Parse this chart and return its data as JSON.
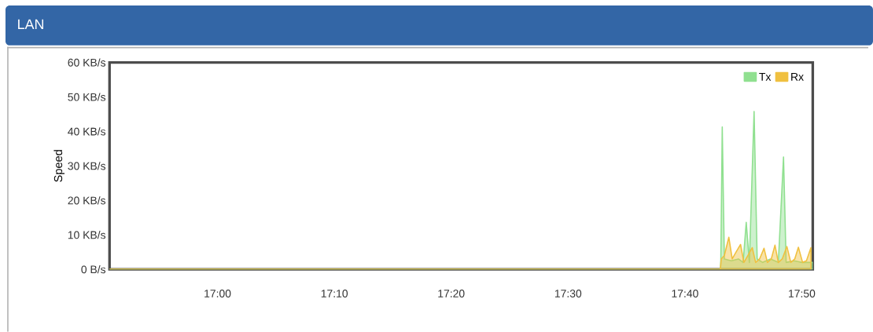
{
  "chart_data": {
    "type": "area",
    "title": "LAN",
    "ylabel": "Speed",
    "xlim": [
      16.846,
      17.849
    ],
    "xticks": [
      {
        "value": 17.0,
        "label": "17:00"
      },
      {
        "value": 17.1667,
        "label": "17:10"
      },
      {
        "value": 17.3333,
        "label": "17:20"
      },
      {
        "value": 17.5,
        "label": "17:30"
      },
      {
        "value": 17.6667,
        "label": "17:40"
      },
      {
        "value": 17.8333,
        "label": "17:50"
      }
    ],
    "ylim": [
      0,
      60
    ],
    "yticks": [
      {
        "value": 0,
        "label": "0 B/s"
      },
      {
        "value": 10,
        "label": "10 KB/s"
      },
      {
        "value": 20,
        "label": "20 KB/s"
      },
      {
        "value": 30,
        "label": "30 KB/s"
      },
      {
        "value": 40,
        "label": "40 KB/s"
      },
      {
        "value": 50,
        "label": "50 KB/s"
      },
      {
        "value": 60,
        "label": "60 KB/s"
      }
    ],
    "grid": false,
    "legend": "top right",
    "series": [
      {
        "name": "Tx",
        "color": "#90e090",
        "x": [
          16.846,
          17.7173,
          17.7179,
          17.7199,
          17.7229,
          17.7329,
          17.743,
          17.7497,
          17.7541,
          17.7586,
          17.7653,
          17.7697,
          17.7776,
          17.7887,
          17.7999,
          17.8073,
          17.811,
          17.8222,
          17.8333,
          17.8445,
          17.849
        ],
        "values": [
          0,
          0,
          3,
          41.3,
          3,
          2.5,
          3,
          2,
          13.6,
          2,
          45.8,
          3,
          2,
          3,
          2,
          32.6,
          2,
          2.5,
          2,
          2,
          2
        ]
      },
      {
        "name": "Rx",
        "color": "#f0c040",
        "x": [
          16.846,
          17.7173,
          17.7184,
          17.7229,
          17.7293,
          17.7341,
          17.7396,
          17.746,
          17.7508,
          17.7564,
          17.7627,
          17.7675,
          17.7731,
          17.7795,
          17.7843,
          17.7898,
          17.7951,
          17.7999,
          17.8054,
          17.8121,
          17.8177,
          17.8233,
          17.8285,
          17.8345,
          17.84,
          17.8464
        ],
        "values": [
          0,
          0,
          3,
          4,
          9.3,
          3,
          5,
          7.2,
          2,
          4,
          6.3,
          2,
          3,
          6.1,
          2,
          3,
          7.0,
          2,
          3,
          6.6,
          2,
          3,
          6.4,
          2,
          2.5,
          6.3
        ]
      }
    ]
  }
}
